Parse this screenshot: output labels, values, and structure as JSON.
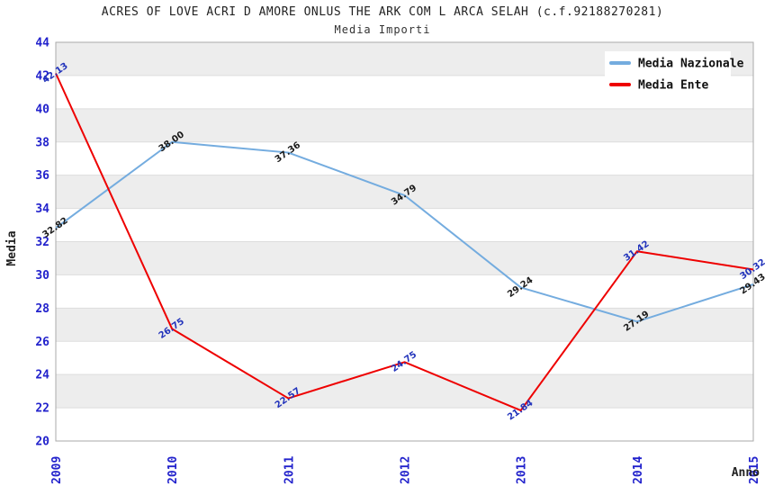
{
  "chart_data": {
    "type": "line",
    "title": "ACRES OF LOVE ACRI D AMORE ONLUS THE ARK COM L ARCA SELAH (c.f.92188270281)",
    "subtitle": "Media Importi",
    "categories": [
      "2009",
      "2010",
      "2011",
      "2012",
      "2013",
      "2014",
      "2015"
    ],
    "series": [
      {
        "name": "Media Nazionale",
        "color": "#74ACDF",
        "label_color": "#1a1a1a",
        "values": [
          32.82,
          38.0,
          37.36,
          34.79,
          29.24,
          27.19,
          29.43
        ]
      },
      {
        "name": "Media Ente",
        "color": "#EE0000",
        "label_color": "#2233BB",
        "values": [
          42.13,
          26.75,
          22.57,
          24.75,
          21.84,
          31.42,
          30.32
        ]
      }
    ],
    "xlabel": "Anno",
    "ylabel": "Media",
    "ylim": [
      20,
      44
    ],
    "ytick_step": 2,
    "label_decimals": 2,
    "label_angle": -35,
    "grid": "banded-horizontal",
    "legend_position": "top-right",
    "colors": {
      "band": "#EDEDED",
      "gridline": "#DDDDDD",
      "plot_border": "#AAAAAA",
      "tick_label": "#2222CC",
      "legend_background": "#FFFFFF"
    }
  }
}
